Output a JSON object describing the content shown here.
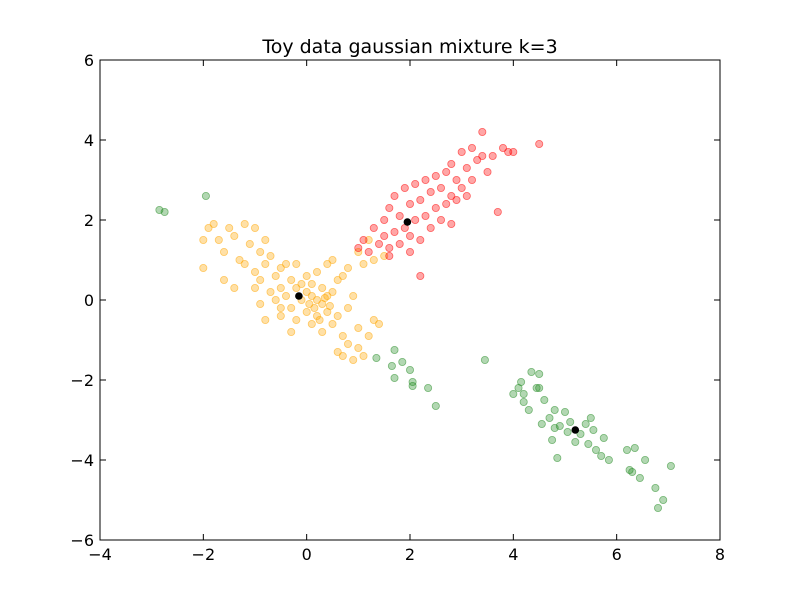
{
  "chart_data": {
    "type": "scatter",
    "title": "Toy data gaussian mixture k=3",
    "xlabel": "",
    "ylabel": "",
    "xlim": [
      -4,
      8
    ],
    "ylim": [
      -6,
      6
    ],
    "x_ticks": [
      -4,
      -2,
      0,
      2,
      4,
      6,
      8
    ],
    "y_ticks": [
      -6,
      -4,
      -2,
      0,
      2,
      4,
      6
    ],
    "x_tick_labels": [
      "−4",
      "−2",
      "0",
      "2",
      "4",
      "6",
      "8"
    ],
    "y_tick_labels": [
      "−6",
      "−4",
      "−2",
      "0",
      "2",
      "4",
      "6"
    ],
    "grid": false,
    "legend": "none",
    "series": [
      {
        "color": "#ffa500",
        "points": [
          [
            -2.0,
            0.8
          ],
          [
            -2.0,
            1.5
          ],
          [
            -1.9,
            1.8
          ],
          [
            -1.8,
            1.9
          ],
          [
            -1.7,
            1.5
          ],
          [
            -1.6,
            1.2
          ],
          [
            -1.5,
            1.8
          ],
          [
            -1.4,
            1.6
          ],
          [
            -1.3,
            1.0
          ],
          [
            -1.2,
            1.9
          ],
          [
            -1.2,
            0.9
          ],
          [
            -1.1,
            1.4
          ],
          [
            -1.0,
            1.8
          ],
          [
            -1.0,
            0.3
          ],
          [
            -1.0,
            0.7
          ],
          [
            -0.9,
            1.2
          ],
          [
            -0.9,
            0.5
          ],
          [
            -0.8,
            0.9
          ],
          [
            -0.8,
            1.5
          ],
          [
            -0.7,
            0.2
          ],
          [
            -0.7,
            1.1
          ],
          [
            -0.6,
            0.6
          ],
          [
            -0.6,
            0.0
          ],
          [
            -0.5,
            0.8
          ],
          [
            -0.5,
            0.3
          ],
          [
            -0.5,
            -0.4
          ],
          [
            -0.4,
            0.9
          ],
          [
            -0.4,
            0.1
          ],
          [
            -0.3,
            -0.2
          ],
          [
            -0.3,
            0.5
          ],
          [
            -0.3,
            -0.8
          ],
          [
            -0.2,
            0.3
          ],
          [
            -0.2,
            -0.5
          ],
          [
            -0.2,
            0.9
          ],
          [
            -0.1,
            0.0
          ],
          [
            -0.1,
            0.4
          ],
          [
            0.0,
            -0.3
          ],
          [
            0.0,
            0.2
          ],
          [
            0.0,
            0.6
          ],
          [
            0.05,
            -0.1
          ],
          [
            0.1,
            0.1
          ],
          [
            0.1,
            -0.6
          ],
          [
            0.1,
            0.4
          ],
          [
            0.2,
            0.0
          ],
          [
            0.2,
            -0.4
          ],
          [
            0.2,
            0.7
          ],
          [
            0.3,
            -0.1
          ],
          [
            0.3,
            0.3
          ],
          [
            0.3,
            -0.8
          ],
          [
            0.4,
            0.1
          ],
          [
            0.4,
            -0.3
          ],
          [
            0.4,
            0.9
          ],
          [
            0.5,
            -0.6
          ],
          [
            0.5,
            0.2
          ],
          [
            0.5,
            1.0
          ],
          [
            0.6,
            -0.4
          ],
          [
            0.6,
            0.5
          ],
          [
            0.6,
            -1.3
          ],
          [
            0.7,
            -0.9
          ],
          [
            0.7,
            0.6
          ],
          [
            0.7,
            -1.4
          ],
          [
            0.8,
            -0.2
          ],
          [
            0.8,
            0.8
          ],
          [
            0.8,
            -1.1
          ],
          [
            0.9,
            -1.5
          ],
          [
            0.9,
            0.1
          ],
          [
            1.0,
            -0.7
          ],
          [
            1.0,
            1.2
          ],
          [
            1.0,
            -1.2
          ],
          [
            1.1,
            0.9
          ],
          [
            1.1,
            -1.4
          ],
          [
            1.2,
            1.5
          ],
          [
            1.2,
            -0.9
          ],
          [
            1.3,
            1.0
          ],
          [
            1.3,
            -0.5
          ],
          [
            1.4,
            -0.6
          ],
          [
            1.5,
            1.1
          ],
          [
            -1.6,
            0.5
          ],
          [
            -1.4,
            0.3
          ],
          [
            -0.9,
            -0.1
          ],
          [
            -0.8,
            -0.5
          ],
          [
            -0.5,
            -0.2
          ],
          [
            0.15,
            -0.2
          ],
          [
            0.25,
            -0.5
          ],
          [
            0.35,
            0.05
          ],
          [
            0.45,
            -0.15
          ]
        ]
      },
      {
        "color": "#ff0000",
        "points": [
          [
            1.0,
            1.3
          ],
          [
            1.1,
            1.5
          ],
          [
            1.2,
            1.2
          ],
          [
            1.3,
            1.8
          ],
          [
            1.4,
            1.4
          ],
          [
            1.5,
            2.0
          ],
          [
            1.5,
            1.6
          ],
          [
            1.6,
            1.3
          ],
          [
            1.6,
            2.3
          ],
          [
            1.7,
            1.7
          ],
          [
            1.7,
            2.6
          ],
          [
            1.8,
            1.4
          ],
          [
            1.8,
            2.1
          ],
          [
            1.9,
            1.8
          ],
          [
            1.9,
            2.8
          ],
          [
            2.0,
            1.6
          ],
          [
            2.0,
            2.4
          ],
          [
            2.1,
            2.0
          ],
          [
            2.1,
            2.9
          ],
          [
            2.2,
            1.5
          ],
          [
            2.2,
            2.5
          ],
          [
            2.3,
            2.1
          ],
          [
            2.3,
            3.0
          ],
          [
            2.4,
            1.8
          ],
          [
            2.4,
            2.7
          ],
          [
            2.5,
            2.3
          ],
          [
            2.5,
            3.1
          ],
          [
            2.6,
            2.0
          ],
          [
            2.6,
            2.8
          ],
          [
            2.7,
            2.4
          ],
          [
            2.7,
            3.2
          ],
          [
            2.8,
            2.6
          ],
          [
            2.8,
            1.9
          ],
          [
            2.9,
            3.0
          ],
          [
            2.9,
            2.5
          ],
          [
            3.0,
            2.8
          ],
          [
            3.0,
            3.7
          ],
          [
            3.1,
            2.6
          ],
          [
            3.1,
            3.3
          ],
          [
            3.2,
            3.0
          ],
          [
            3.3,
            3.5
          ],
          [
            3.4,
            3.6
          ],
          [
            3.4,
            4.2
          ],
          [
            3.5,
            3.2
          ],
          [
            3.6,
            3.6
          ],
          [
            3.7,
            2.2
          ],
          [
            3.8,
            3.8
          ],
          [
            3.9,
            3.7
          ],
          [
            4.0,
            3.7
          ],
          [
            4.5,
            3.9
          ],
          [
            2.2,
            0.6
          ],
          [
            1.6,
            1.1
          ],
          [
            2.0,
            1.2
          ],
          [
            2.8,
            3.4
          ],
          [
            3.2,
            3.8
          ]
        ]
      },
      {
        "color": "#228b22",
        "points": [
          [
            -2.85,
            2.25
          ],
          [
            -2.75,
            2.2
          ],
          [
            -1.95,
            2.6
          ],
          [
            1.35,
            -1.45
          ],
          [
            1.65,
            -1.65
          ],
          [
            1.7,
            -1.25
          ],
          [
            1.7,
            -1.95
          ],
          [
            1.85,
            -1.55
          ],
          [
            2.0,
            -1.75
          ],
          [
            2.05,
            -2.05
          ],
          [
            2.05,
            -2.15
          ],
          [
            2.35,
            -2.2
          ],
          [
            2.5,
            -2.65
          ],
          [
            3.45,
            -1.5
          ],
          [
            4.0,
            -2.35
          ],
          [
            4.1,
            -2.2
          ],
          [
            4.15,
            -2.05
          ],
          [
            4.2,
            -2.55
          ],
          [
            4.3,
            -2.75
          ],
          [
            4.35,
            -1.8
          ],
          [
            4.45,
            -2.2
          ],
          [
            4.5,
            -1.85
          ],
          [
            4.55,
            -3.1
          ],
          [
            4.6,
            -2.5
          ],
          [
            4.7,
            -2.95
          ],
          [
            4.75,
            -3.5
          ],
          [
            4.8,
            -2.75
          ],
          [
            4.8,
            -3.2
          ],
          [
            4.85,
            -3.95
          ],
          [
            4.9,
            -3.15
          ],
          [
            5.0,
            -2.8
          ],
          [
            5.05,
            -3.3
          ],
          [
            5.1,
            -3.05
          ],
          [
            5.2,
            -3.55
          ],
          [
            5.3,
            -3.35
          ],
          [
            5.4,
            -3.1
          ],
          [
            5.45,
            -3.6
          ],
          [
            5.5,
            -2.95
          ],
          [
            5.55,
            -3.25
          ],
          [
            5.6,
            -3.75
          ],
          [
            5.7,
            -3.9
          ],
          [
            5.75,
            -3.45
          ],
          [
            5.85,
            -4.0
          ],
          [
            6.2,
            -3.75
          ],
          [
            6.25,
            -4.25
          ],
          [
            6.3,
            -4.3
          ],
          [
            6.35,
            -3.7
          ],
          [
            6.45,
            -4.45
          ],
          [
            6.55,
            -4.0
          ],
          [
            6.75,
            -4.7
          ],
          [
            6.8,
            -5.2
          ],
          [
            6.9,
            -5.0
          ],
          [
            7.05,
            -4.15
          ],
          [
            4.2,
            -2.35
          ],
          [
            4.5,
            -2.2
          ]
        ]
      }
    ],
    "centroids": {
      "color": "#000000",
      "points": [
        [
          -0.15,
          0.1
        ],
        [
          1.95,
          1.95
        ],
        [
          5.2,
          -3.25
        ]
      ]
    }
  }
}
